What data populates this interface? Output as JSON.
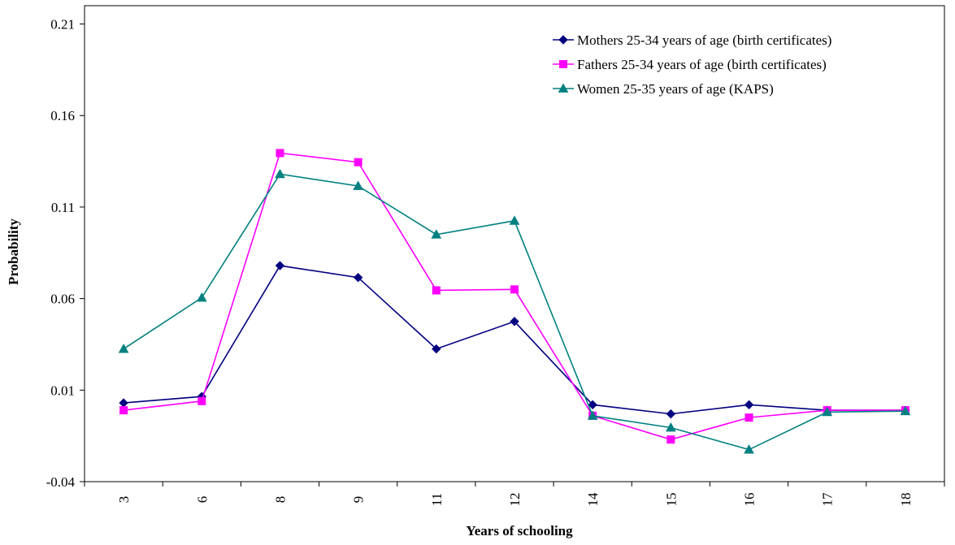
{
  "chart_data": {
    "type": "line",
    "title": "",
    "xlabel": "Years of schooling",
    "ylabel": "Probability",
    "categories": [
      "3",
      "6",
      "8",
      "9",
      "11",
      "12",
      "14",
      "15",
      "16",
      "17",
      "18"
    ],
    "ylim": [
      -0.04,
      0.22
    ],
    "yticks": [
      "-0.04",
      "0.01",
      "0.06",
      "0.11",
      "0.16",
      "0.21"
    ],
    "ytick_values": [
      -0.04,
      0.01,
      0.06,
      0.11,
      0.16,
      0.21
    ],
    "grid": false,
    "legend_position": "top-right",
    "series": [
      {
        "name": "Mothers 25-34 years of age (birth certificates)",
        "color": "#000080",
        "marker": "diamond",
        "values": [
          0.003,
          0.0065,
          0.078,
          0.0715,
          0.0325,
          0.0475,
          0.002,
          -0.003,
          0.002,
          -0.001,
          -0.001
        ]
      },
      {
        "name": "Fathers 25-34 years of age (birth certificates)",
        "color": "#ff00ff",
        "marker": "square",
        "values": [
          -0.001,
          0.004,
          0.1395,
          0.1345,
          0.0645,
          0.065,
          -0.004,
          -0.017,
          -0.005,
          -0.001,
          -0.001
        ]
      },
      {
        "name": "Women 25-35 years of age (KAPS)",
        "color": "#008080",
        "marker": "triangle",
        "values": [
          0.0325,
          0.0605,
          0.128,
          0.1215,
          0.095,
          0.1025,
          -0.004,
          -0.0105,
          -0.0225,
          -0.002,
          -0.0015
        ]
      }
    ]
  }
}
